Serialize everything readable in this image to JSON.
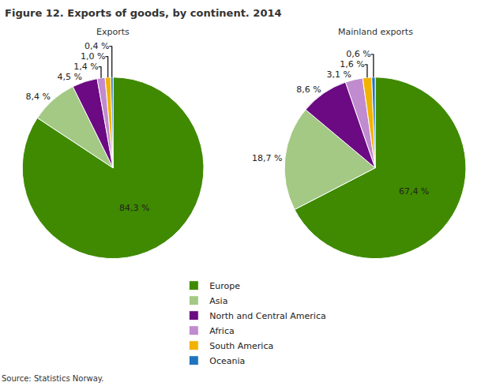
{
  "title": "Figure 12. Exports of goods, by continent. 2014",
  "source": "Source: Statistics Norway.",
  "chart_data": [
    {
      "type": "pie",
      "title": "Exports",
      "categories": [
        "Europe",
        "Asia",
        "North and Central America",
        "Africa",
        "South America",
        "Oceania"
      ],
      "values": [
        84.3,
        8.4,
        4.5,
        1.4,
        1.0,
        0.4
      ],
      "value_labels": [
        "84,3 %",
        "8,4 %",
        "4,5 %",
        "1,4 %",
        "1,0 %",
        "0,4 %"
      ],
      "colors": [
        "#3f8a00",
        "#a3c985",
        "#6b0a82",
        "#c08bcf",
        "#f2b200",
        "#1f74bf"
      ],
      "data_labels": true,
      "legend": "bottom"
    },
    {
      "type": "pie",
      "title": "Mainland exports",
      "categories": [
        "Europe",
        "Asia",
        "North and Central America",
        "Africa",
        "South America",
        "Oceania"
      ],
      "values": [
        67.4,
        18.7,
        8.6,
        3.1,
        1.6,
        0.6
      ],
      "value_labels": [
        "67,4 %",
        "18,7 %",
        "8,6 %",
        "3,1 %",
        "1,6 %",
        "0,6 %"
      ],
      "colors": [
        "#3f8a00",
        "#a3c985",
        "#6b0a82",
        "#c08bcf",
        "#f2b200",
        "#1f74bf"
      ],
      "data_labels": true
    }
  ]
}
